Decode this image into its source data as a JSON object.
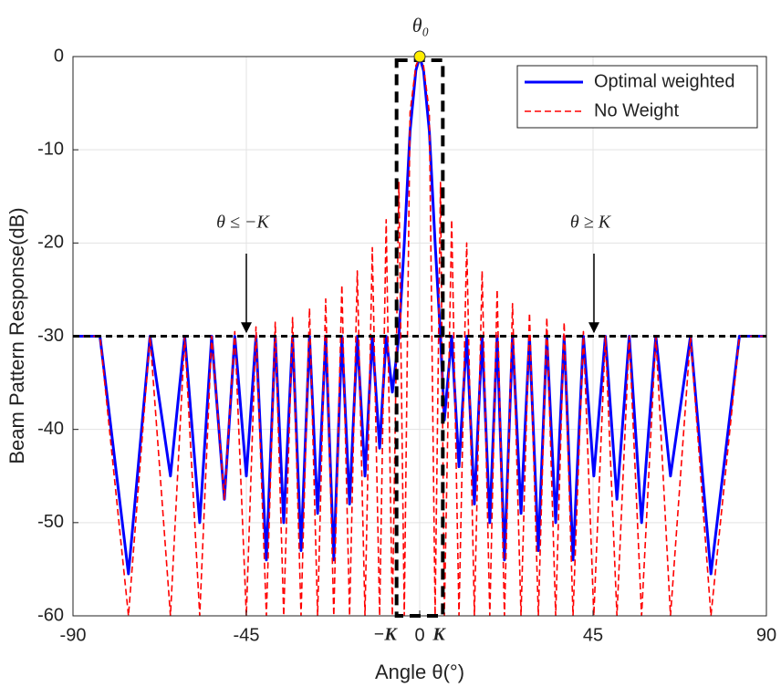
{
  "chart_data": {
    "type": "line",
    "xlabel": "Angle θ(°)",
    "ylabel": "Beam Pattern Response(dB)",
    "x": [
      -90,
      -83,
      -75.6,
      -70,
      -64.7,
      -61,
      -57.1,
      -54,
      -50.7,
      -48,
      -45,
      -42.5,
      -39.8,
      -37.5,
      -35.3,
      -33,
      -30.8,
      -28.6,
      -26.5,
      -24.4,
      -22.3,
      -20.2,
      -18.2,
      -16.2,
      -14.2,
      -12.3,
      -10.4,
      -8.7,
      -7.1,
      -5.4,
      -4,
      -2.5,
      -1,
      0,
      1,
      2.5,
      4,
      5.4,
      6.4,
      8.3,
      10.2,
      12.2,
      14.2,
      16.2,
      18.2,
      20.1,
      22,
      24.1,
      26.3,
      28.5,
      30.8,
      33,
      35.3,
      37.5,
      39.8,
      42.5,
      45.2,
      48.2,
      51.2,
      54.4,
      57.6,
      61.3,
      65.1,
      70.3,
      75.6,
      83,
      90
    ],
    "series": [
      {
        "name": "Optimal weighted",
        "color": "#0000ff",
        "style": "solid",
        "values": [
          -30,
          -30,
          -55.5,
          -30,
          -45,
          -30,
          -50,
          -30,
          -47.5,
          -30,
          -45,
          -30,
          -54,
          -30,
          -50,
          -30,
          -53,
          -30,
          -49,
          -30,
          -54,
          -30,
          -48,
          -30,
          -45,
          -30,
          -42,
          -30,
          -36,
          -30,
          -20,
          -8,
          -1.5,
          0,
          -1.5,
          -8,
          -20,
          -30,
          -39,
          -30,
          -44,
          -30,
          -48,
          -30,
          -50,
          -30,
          -54,
          -30,
          -49,
          -30,
          -53,
          -30,
          -50,
          -30,
          -54,
          -30,
          -45,
          -30,
          -47.5,
          -30,
          -50,
          -30,
          -45,
          -30,
          -55.5,
          -30,
          -30
        ]
      },
      {
        "name": "No Weight",
        "color": "#ff0000",
        "style": "dashed",
        "values": [
          -30,
          -30,
          -60,
          -30,
          -60,
          -30,
          -60,
          -30,
          -47.5,
          -29.5,
          -60,
          -29,
          -60,
          -28.5,
          -60,
          -28,
          -60,
          -27,
          -60,
          -26,
          -60,
          -24.5,
          -60,
          -23,
          -60,
          -20.5,
          -60,
          -17.5,
          -60,
          -13.5,
          -60,
          -6,
          -1,
          0,
          -1,
          -6,
          -60,
          -13.5,
          -60,
          -17.5,
          -60,
          -20,
          -60,
          -23,
          -60,
          -25,
          -60,
          -26.5,
          -60,
          -27.5,
          -60,
          -28,
          -60,
          -28.5,
          -60,
          -29.5,
          -60,
          -30,
          -60,
          -30,
          -60,
          -30,
          -60,
          -30,
          -60,
          -30,
          -30
        ]
      }
    ],
    "threshold": -30,
    "mainlobe_region": [
      -6,
      6
    ],
    "annotations": {
      "peak": "θ₀",
      "left": "θ ≤ −K",
      "right": "θ ≥ K",
      "minus_k": "−K",
      "k": "K"
    },
    "xlim": [
      -90,
      90
    ],
    "xticks": [
      -90,
      -45,
      0,
      45,
      90
    ],
    "ylim": [
      -60,
      0
    ],
    "yticks": [
      -60,
      -50,
      -40,
      -30,
      -20,
      -10,
      0
    ],
    "grid": true,
    "legend": "northeast"
  }
}
